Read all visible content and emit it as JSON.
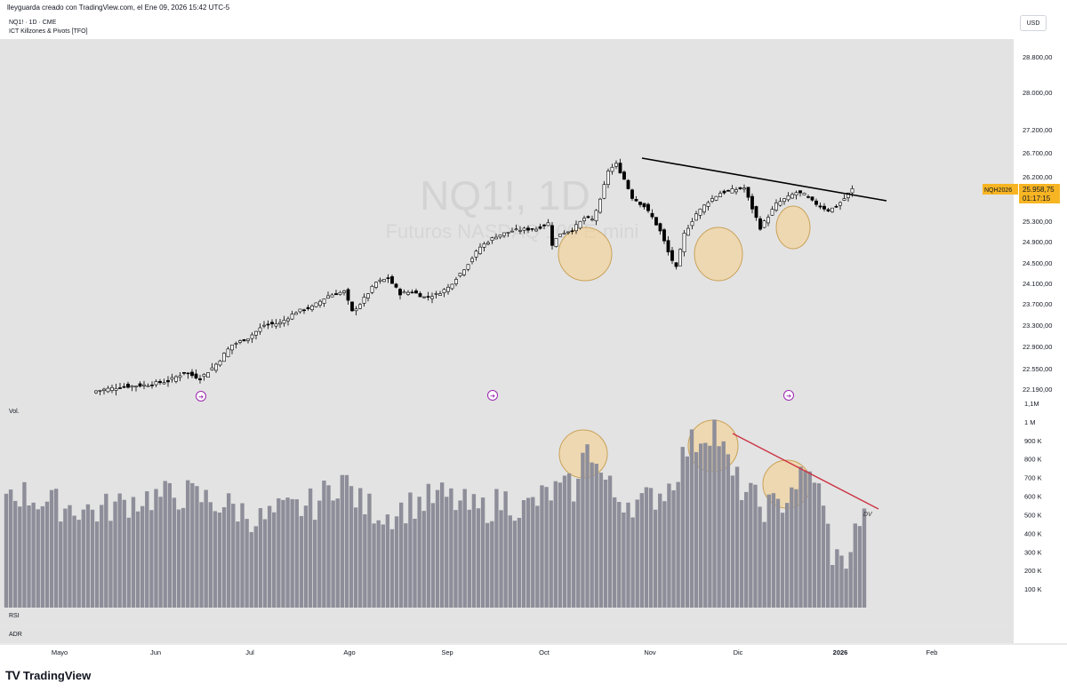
{
  "header": {
    "attribution": "lleyguarda creado con TradingView.com, el Ene 09, 2026 15:42 UTC-5",
    "symbol_line": "NQ1! · 1D · CME",
    "indicator_line": "ICT Killzones & Pivots [TFO]",
    "currency": "USD"
  },
  "watermark": {
    "symbol": "NQ1!, 1D",
    "description": "Futuros NASDAQ 100 E-mini"
  },
  "price_badge": {
    "contract": "NQH2026",
    "price": "25.958,75",
    "countdown": "01:17:15",
    "color": "#f7b523"
  },
  "panes": {
    "volume_label": "Vol.",
    "rsi_label": "RSI",
    "adr_label": "ADR",
    "dv_label": "DV"
  },
  "brand": {
    "name": "TradingView",
    "logo": "TV"
  },
  "colors": {
    "up_candle": "#ffffff",
    "down_candle": "#000000",
    "volume_bar": "#8e8e9a",
    "highlight": "#f5d08f",
    "trendline_price": "#000000",
    "trendline_volume": "#cc3344",
    "chart_bg": "#e3e3e3"
  },
  "chart_data": {
    "type": "candlestick",
    "x_axis": {
      "labels": [
        "Mayo",
        "Jun",
        "Jul",
        "Ago",
        "Sep",
        "Oct",
        "Nov",
        "Dic",
        "2026",
        "Feb"
      ],
      "bold": [
        "2026"
      ]
    },
    "price_axis": {
      "ticks": [
        "28.800,00",
        "28.000,00",
        "27.200,00",
        "26.700,00",
        "26.200,00",
        "25.300,00",
        "24.900,00",
        "24.500,00",
        "24.100,00",
        "23.700,00",
        "23.300,00",
        "22.900,00",
        "22.550,00",
        "22.190,00"
      ],
      "tick_values": [
        28800,
        28000,
        27200,
        26700,
        26200,
        25300,
        24900,
        24500,
        24100,
        23700,
        23300,
        22900,
        22550,
        22190
      ],
      "last_price": 25958.75
    },
    "volume_axis": {
      "ticks": [
        "1,1M",
        "1 M",
        "900 K",
        "800 K",
        "700 K",
        "600 K",
        "500 K",
        "400 K",
        "300 K",
        "200 K",
        "100 K"
      ],
      "tick_values": [
        1100000,
        1000000,
        900000,
        800000,
        700000,
        600000,
        500000,
        400000,
        300000,
        200000,
        100000
      ]
    },
    "ohlc_anchors": [
      [
        0,
        22160
      ],
      [
        6,
        22230
      ],
      [
        12,
        22260
      ],
      [
        18,
        22330
      ],
      [
        22,
        22480
      ],
      [
        26,
        22380
      ],
      [
        30,
        22620
      ],
      [
        34,
        22930
      ],
      [
        38,
        23060
      ],
      [
        42,
        23300
      ],
      [
        46,
        23340
      ],
      [
        50,
        23550
      ],
      [
        54,
        23640
      ],
      [
        58,
        23860
      ],
      [
        62,
        23940
      ],
      [
        64,
        23550
      ],
      [
        66,
        23700
      ],
      [
        70,
        24120
      ],
      [
        73,
        24200
      ],
      [
        76,
        23900
      ],
      [
        79,
        23940
      ],
      [
        82,
        23830
      ],
      [
        85,
        23880
      ],
      [
        88,
        24020
      ],
      [
        92,
        24390
      ],
      [
        96,
        24800
      ],
      [
        100,
        25010
      ],
      [
        104,
        25110
      ],
      [
        107,
        25140
      ],
      [
        110,
        25150
      ],
      [
        113,
        25260
      ],
      [
        114,
        24850
      ],
      [
        116,
        25060
      ],
      [
        119,
        25130
      ],
      [
        122,
        25360
      ],
      [
        124,
        25330
      ],
      [
        126,
        25720
      ],
      [
        128,
        26330
      ],
      [
        130,
        26460
      ],
      [
        132,
        26150
      ],
      [
        134,
        25780
      ],
      [
        137,
        25600
      ],
      [
        139,
        25380
      ],
      [
        141,
        25100
      ],
      [
        143,
        24700
      ],
      [
        145,
        24400
      ],
      [
        147,
        25050
      ],
      [
        150,
        25450
      ],
      [
        153,
        25700
      ],
      [
        156,
        25870
      ],
      [
        159,
        25930
      ],
      [
        162,
        25970
      ],
      [
        164,
        25560
      ],
      [
        166,
        25170
      ],
      [
        168,
        25400
      ],
      [
        170,
        25650
      ],
      [
        173,
        25790
      ],
      [
        175,
        25880
      ],
      [
        177,
        25840
      ],
      [
        179,
        25700
      ],
      [
        181,
        25600
      ],
      [
        183,
        25520
      ],
      [
        185,
        25600
      ],
      [
        187,
        25760
      ],
      [
        189,
        25958.75
      ]
    ],
    "volume_anchors": [
      [
        0,
        640000
      ],
      [
        10,
        560000
      ],
      [
        20,
        520000
      ],
      [
        30,
        590000
      ],
      [
        40,
        610000
      ],
      [
        50,
        540000
      ],
      [
        56,
        470000
      ],
      [
        60,
        510000
      ],
      [
        68,
        560000
      ],
      [
        74,
        700000
      ],
      [
        78,
        560000
      ],
      [
        84,
        500000
      ],
      [
        90,
        560000
      ],
      [
        96,
        600000
      ],
      [
        100,
        560000
      ],
      [
        104,
        520000
      ],
      [
        110,
        580000
      ],
      [
        114,
        530000
      ],
      [
        120,
        620000
      ],
      [
        126,
        650000
      ],
      [
        128,
        930000
      ],
      [
        130,
        760000
      ],
      [
        134,
        600000
      ],
      [
        140,
        560000
      ],
      [
        146,
        650000
      ],
      [
        150,
        860000
      ],
      [
        156,
        980000
      ],
      [
        160,
        700000
      ],
      [
        166,
        550000
      ],
      [
        170,
        540000
      ],
      [
        174,
        680000
      ],
      [
        178,
        720000
      ],
      [
        180,
        520000
      ],
      [
        182,
        300000
      ],
      [
        184,
        230000
      ],
      [
        186,
        320000
      ],
      [
        188,
        480000
      ],
      [
        189,
        460000
      ]
    ],
    "candle_count": 190,
    "notes": {
      "price_trendline": "descending line from Oct high to Jan",
      "volume_trendline": "descending line labeled DV",
      "highlighted_zones": "highlighted circles on price and volume"
    }
  }
}
